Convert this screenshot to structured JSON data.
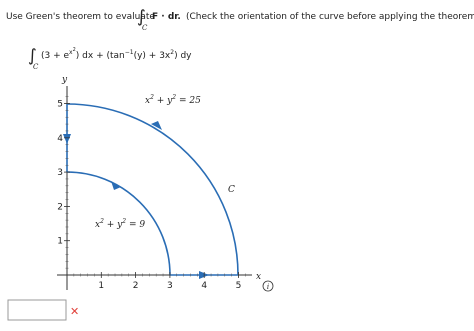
{
  "question": {
    "prefix": "Use Green's theorem to evaluate",
    "integral_sign": "∫",
    "integral_subscript": "C",
    "integrand": "F · dr.",
    "note": "(Check the orientation of the curve before applying the theorem.)"
  },
  "expression": {
    "integral_sign": "∫",
    "integral_subscript": "C",
    "part1": "(3 + e",
    "exp_base": "x",
    "exp_sup": "2",
    "part2": ") dx + (tan",
    "inv_sup": "−1",
    "part3": "(y) + 3x",
    "sq_sup": "2",
    "part4": ") dy"
  },
  "figure": {
    "x_label": "x",
    "y_label": "y",
    "xticks": [
      1,
      2,
      3,
      4,
      5
    ],
    "yticks": [
      1,
      2,
      3,
      4,
      5
    ],
    "outer_label": {
      "x": "x",
      "x_sup": "2",
      "plus_y": " + y",
      "y_sup": "2",
      "rhs": " = 25"
    },
    "inner_label": {
      "x": "x",
      "x_sup": "2",
      "plus_y": " + y",
      "y_sup": "2",
      "rhs": " = 9"
    },
    "curve_label": "C",
    "info_icon": "i"
  },
  "answer": {
    "status_icon": "✕"
  }
}
